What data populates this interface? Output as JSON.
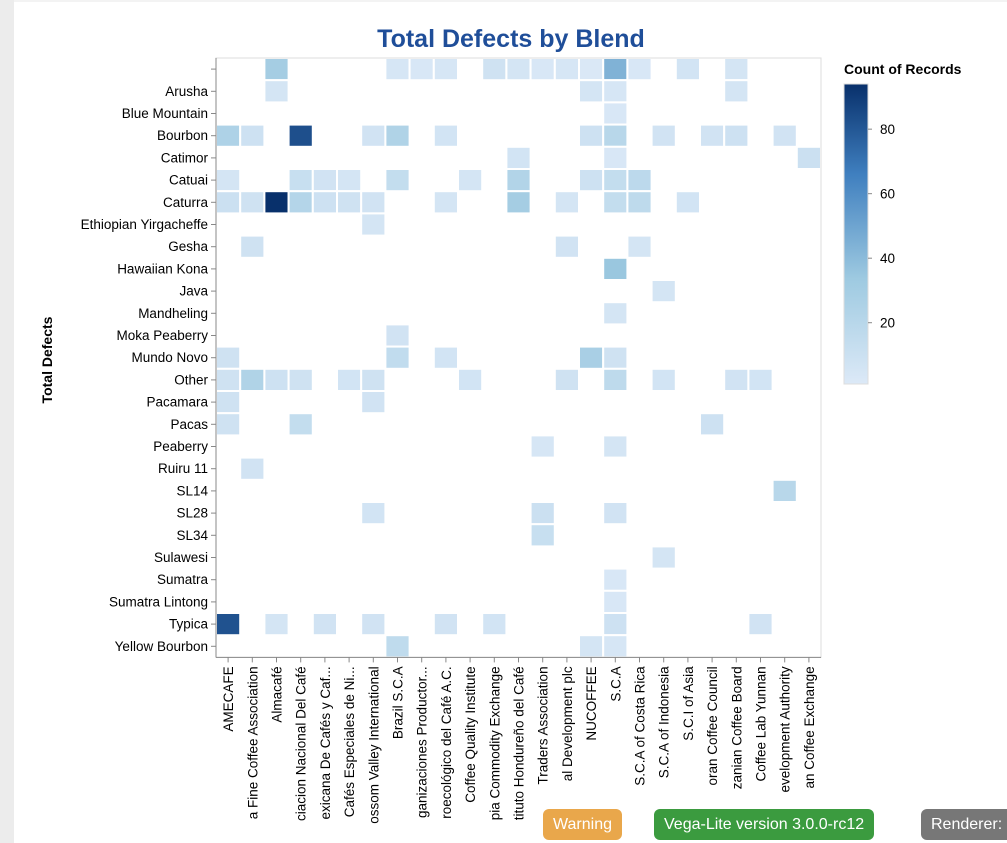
{
  "chart_data": {
    "type": "heatmap",
    "title": "Total Defects by Blend",
    "ylabel": "Total Defects",
    "xlabel": "",
    "legend_title": "Count of Records",
    "legend_ticks": [
      20,
      40,
      60,
      80
    ],
    "color_domain": [
      1,
      94
    ],
    "color_range": [
      "#dce9f7",
      "#08306b"
    ],
    "x_categories": [
      "AMECAFE",
      "Asociación Nacional Del Café ...Guatemala Fine Coffee Association",
      "Almacafé",
      "Asociacion Nacional Del Café",
      "Asociación Mexicana De Cafés y Caf...",
      "Asociación de Cafés Especiales de Ni...",
      "Blossom Valley International",
      "Brazil S.C.A",
      "Centro Agroecológico de Organizaciones Productor...",
      "Centro Agroecológico del Café A.C.",
      "Coffee Quality Institute",
      "Ethiopia Commodity Exchange",
      "Instituto Hondureño del Café",
      "Kenya Coffee Traders Association",
      "Ethiopia Rural Development plc",
      "NUCOFFEE",
      "S.C.A",
      "S.C.A of Costa Rica",
      "S.C.A of Indonesia",
      "S.C.I of Asia",
      "Salvadoran Coffee Council",
      "Tanzanian Coffee Board",
      "Coffee Lab Yunnan",
      "Uganda Coffee Development Authority",
      "Yunnan Coffee Exchange"
    ],
    "x_tick_labels": [
      "AMECAFE",
      "a Fine Coffee Association",
      "Almacafé",
      "ciacion Nacional Del Café",
      "exicana De Cafés y Caf...",
      "Cafés Especiales de Ni...",
      "ossom Valley International",
      "Brazil S.C.A",
      "ganizaciones Productor...",
      "roecológico del Café A.C.",
      "Coffee Quality Institute",
      "pia Commodity Exchange",
      "tituto Hondureño del Café",
      "Traders Association",
      "al Development plc",
      "NUCOFFEE",
      "S.C.A",
      "S.C.A of Costa Rica",
      "S.C.A of Indonesia",
      "S.C.I of Asia",
      "oran Coffee Council",
      "zanian Coffee Board",
      "Coffee Lab Yunnan",
      "evelopment Authority",
      "an Coffee Exchange"
    ],
    "y_categories": [
      "",
      "Arusha",
      "Blue Mountain",
      "Bourbon",
      "Catimor",
      "Catuai",
      "Caturra",
      "Ethiopian Yirgacheffe",
      "Gesha",
      "Hawaiian Kona",
      "Java",
      "Mandheling",
      "Moka Peaberry",
      "Mundo Novo",
      "Other",
      "Pacamara",
      "Pacas",
      "Peaberry",
      "Ruiru 11",
      "SL14",
      "SL28",
      "SL34",
      "Sulawesi",
      "Sumatra",
      "Sumatra Lintong",
      "Typica",
      "Yellow Bourbon"
    ],
    "cells": [
      [
        0,
        2,
        30
      ],
      [
        0,
        7,
        4
      ],
      [
        0,
        8,
        3
      ],
      [
        0,
        9,
        4
      ],
      [
        0,
        11,
        8
      ],
      [
        0,
        12,
        5
      ],
      [
        0,
        13,
        3
      ],
      [
        0,
        14,
        4
      ],
      [
        0,
        15,
        2
      ],
      [
        0,
        16,
        44
      ],
      [
        0,
        17,
        3
      ],
      [
        0,
        19,
        6
      ],
      [
        0,
        21,
        5
      ],
      [
        1,
        2,
        5
      ],
      [
        1,
        15,
        5
      ],
      [
        1,
        16,
        4
      ],
      [
        1,
        21,
        5
      ],
      [
        2,
        16,
        3
      ],
      [
        3,
        0,
        25
      ],
      [
        3,
        1,
        9
      ],
      [
        3,
        3,
        83
      ],
      [
        3,
        6,
        7
      ],
      [
        3,
        7,
        24
      ],
      [
        3,
        9,
        6
      ],
      [
        3,
        15,
        9
      ],
      [
        3,
        16,
        20
      ],
      [
        3,
        18,
        7
      ],
      [
        3,
        20,
        7
      ],
      [
        3,
        21,
        9
      ],
      [
        3,
        23,
        7
      ],
      [
        4,
        12,
        6
      ],
      [
        4,
        16,
        3
      ],
      [
        4,
        24,
        10
      ],
      [
        5,
        0,
        5
      ],
      [
        5,
        3,
        12
      ],
      [
        5,
        4,
        7
      ],
      [
        5,
        5,
        5
      ],
      [
        5,
        7,
        14
      ],
      [
        5,
        10,
        5
      ],
      [
        5,
        12,
        23
      ],
      [
        5,
        15,
        9
      ],
      [
        5,
        16,
        14
      ],
      [
        5,
        17,
        18
      ],
      [
        6,
        0,
        10
      ],
      [
        6,
        1,
        8
      ],
      [
        6,
        2,
        94
      ],
      [
        6,
        3,
        22
      ],
      [
        6,
        4,
        9
      ],
      [
        6,
        5,
        8
      ],
      [
        6,
        6,
        7
      ],
      [
        6,
        9,
        5
      ],
      [
        6,
        12,
        30
      ],
      [
        6,
        14,
        5
      ],
      [
        6,
        16,
        14
      ],
      [
        6,
        17,
        17
      ],
      [
        6,
        19,
        6
      ],
      [
        7,
        6,
        5
      ],
      [
        8,
        1,
        8
      ],
      [
        8,
        14,
        7
      ],
      [
        8,
        17,
        5
      ],
      [
        9,
        16,
        35
      ],
      [
        10,
        18,
        5
      ],
      [
        11,
        16,
        5
      ],
      [
        12,
        7,
        7
      ],
      [
        13,
        0,
        8
      ],
      [
        13,
        7,
        15
      ],
      [
        13,
        9,
        6
      ],
      [
        13,
        15,
        28
      ],
      [
        13,
        16,
        8
      ],
      [
        14,
        0,
        8
      ],
      [
        14,
        1,
        24
      ],
      [
        14,
        2,
        9
      ],
      [
        14,
        3,
        8
      ],
      [
        14,
        5,
        6
      ],
      [
        14,
        6,
        8
      ],
      [
        14,
        10,
        6
      ],
      [
        14,
        14,
        8
      ],
      [
        14,
        16,
        17
      ],
      [
        14,
        18,
        6
      ],
      [
        14,
        21,
        7
      ],
      [
        14,
        22,
        6
      ],
      [
        15,
        0,
        8
      ],
      [
        15,
        6,
        7
      ],
      [
        16,
        0,
        8
      ],
      [
        16,
        3,
        14
      ],
      [
        16,
        20,
        9
      ],
      [
        17,
        13,
        4
      ],
      [
        17,
        16,
        5
      ],
      [
        18,
        1,
        7
      ],
      [
        19,
        23,
        20
      ],
      [
        20,
        6,
        6
      ],
      [
        20,
        13,
        10
      ],
      [
        20,
        16,
        7
      ],
      [
        21,
        13,
        12
      ],
      [
        22,
        18,
        5
      ],
      [
        23,
        16,
        3
      ],
      [
        24,
        16,
        3
      ],
      [
        25,
        0,
        82
      ],
      [
        25,
        2,
        5
      ],
      [
        25,
        4,
        7
      ],
      [
        25,
        6,
        7
      ],
      [
        25,
        9,
        7
      ],
      [
        25,
        11,
        6
      ],
      [
        25,
        16,
        9
      ],
      [
        25,
        22,
        7
      ],
      [
        26,
        7,
        16
      ],
      [
        26,
        15,
        5
      ],
      [
        26,
        16,
        4
      ]
    ]
  },
  "badges": {
    "warning": "Warning",
    "version": "Vega-Lite version 3.0.0-rc12",
    "renderer": "Renderer: C"
  }
}
